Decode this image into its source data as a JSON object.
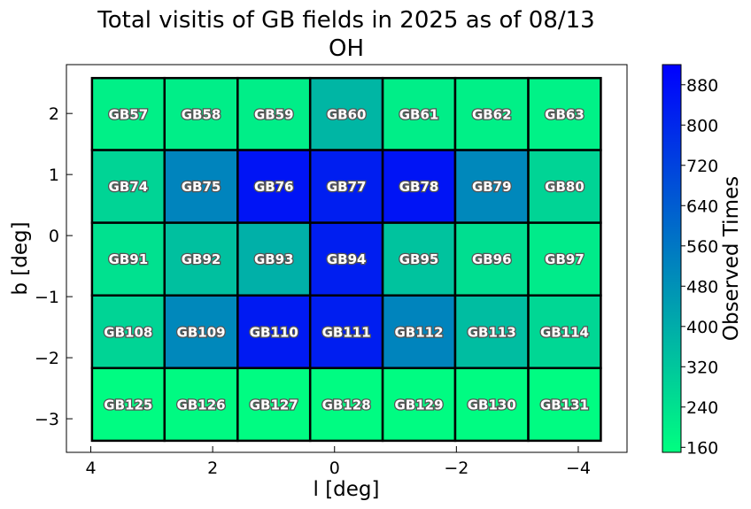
{
  "chart_data": {
    "type": "heatmap",
    "title": "Total visitis of GB fields in 2025 as of 08/13",
    "subtitle": "OH",
    "xlabel": "l [deg]",
    "ylabel": "b [deg]",
    "xlim": [
      4.4,
      -4.8
    ],
    "ylim": [
      -3.55,
      2.8
    ],
    "x_edges": [
      3.98,
      2.79,
      1.59,
      0.4,
      -0.79,
      -1.98,
      -3.18,
      -4.37
    ],
    "y_edges": [
      2.58,
      1.4,
      0.21,
      -0.98,
      -2.17,
      -3.36
    ],
    "x_ticks": [
      {
        "value": 4,
        "label": "4"
      },
      {
        "value": 2,
        "label": "2"
      },
      {
        "value": 0,
        "label": "0"
      },
      {
        "value": -2,
        "label": "−2"
      },
      {
        "value": -4,
        "label": "−4"
      }
    ],
    "y_ticks": [
      {
        "value": 2,
        "label": "2"
      },
      {
        "value": 1,
        "label": "1"
      },
      {
        "value": 0,
        "label": "0"
      },
      {
        "value": -1,
        "label": "−1"
      },
      {
        "value": -2,
        "label": "−2"
      },
      {
        "value": -3,
        "label": "−3"
      }
    ],
    "rows": [
      {
        "fields": [
          "GB57",
          "GB58",
          "GB59",
          "GB60",
          "GB61",
          "GB62",
          "GB63"
        ],
        "values": [
          195,
          200,
          200,
          370,
          200,
          195,
          190
        ]
      },
      {
        "fields": [
          "GB74",
          "GB75",
          "GB76",
          "GB77",
          "GB78",
          "GB79",
          "GB80"
        ],
        "values": [
          280,
          520,
          860,
          830,
          860,
          510,
          280
        ]
      },
      {
        "fields": [
          "GB91",
          "GB92",
          "GB93",
          "GB94",
          "GB95",
          "GB96",
          "GB97"
        ],
        "values": [
          240,
          340,
          390,
          830,
          330,
          250,
          210
        ]
      },
      {
        "fields": [
          "GB108",
          "GB109",
          "GB110",
          "GB111",
          "GB112",
          "GB113",
          "GB114"
        ],
        "values": [
          280,
          510,
          840,
          830,
          520,
          350,
          270
        ]
      },
      {
        "fields": [
          "GB125",
          "GB126",
          "GB127",
          "GB128",
          "GB129",
          "GB130",
          "GB131"
        ],
        "values": [
          160,
          165,
          160,
          160,
          160,
          160,
          160
        ]
      }
    ],
    "colorbar": {
      "label": "Observed Times",
      "vmin": 150,
      "vmax": 920,
      "colors": [
        "#00ff80",
        "#0000ff"
      ],
      "ticks": [
        {
          "value": 160,
          "label": "160"
        },
        {
          "value": 240,
          "label": "240"
        },
        {
          "value": 320,
          "label": "320"
        },
        {
          "value": 400,
          "label": "400"
        },
        {
          "value": 480,
          "label": "480"
        },
        {
          "value": 560,
          "label": "560"
        },
        {
          "value": 640,
          "label": "640"
        },
        {
          "value": 720,
          "label": "720"
        },
        {
          "value": 800,
          "label": "800"
        },
        {
          "value": 880,
          "label": "880"
        }
      ]
    }
  }
}
